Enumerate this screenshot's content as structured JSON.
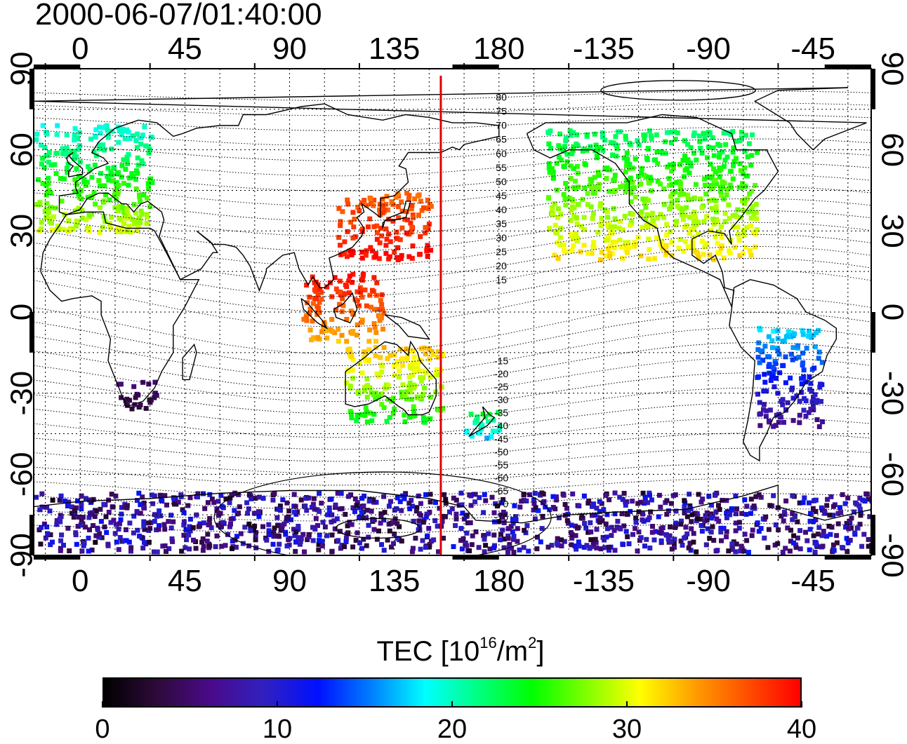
{
  "title": "2000-06-07/01:40:00",
  "map": {
    "type": "world_map_tec",
    "projection": "equirectangular",
    "lon_range": [
      -20,
      340
    ],
    "lat_range": [
      -90,
      90
    ],
    "top_axis_labels": [
      "0",
      "45",
      "90",
      "135",
      "180",
      "-135",
      "-90",
      "-45"
    ],
    "bottom_axis_labels": [
      "0",
      "45",
      "90",
      "135",
      "180",
      "-135",
      "-90",
      "-45"
    ],
    "left_axis_labels": [
      "90",
      "60",
      "30",
      "0",
      "-30",
      "-60",
      "-90"
    ],
    "right_axis_labels": [
      "90",
      "60",
      "30",
      "0",
      "-30",
      "-60",
      "-90"
    ],
    "grid": true,
    "red_meridian_lon": 155,
    "contour_labels_north": [
      "80",
      "75",
      "70",
      "65",
      "60",
      "55",
      "50",
      "45",
      "40",
      "35",
      "30",
      "25",
      "20",
      "15"
    ],
    "contour_labels_south": [
      "-15",
      "-20",
      "-25",
      "-30",
      "-35",
      "-40",
      "-45",
      "-50",
      "-55",
      "-60",
      "-65",
      "-70",
      "-75"
    ]
  },
  "colorbar": {
    "title": "TEC  [10",
    "title_sup1": "16",
    "title_mid": "/m",
    "title_sup2": "2",
    "title_end": "]",
    "min": 0,
    "max": 40,
    "tick_labels": [
      "0",
      "10",
      "20",
      "30",
      "40"
    ],
    "tick_values": [
      0,
      10,
      20,
      30,
      40
    ],
    "colors": [
      "#000000",
      "#2e0a3a",
      "#4a0a8a",
      "#3020c0",
      "#0010ff",
      "#0080ff",
      "#00ffff",
      "#00ff80",
      "#00ff00",
      "#80ff00",
      "#ffff00",
      "#ffa000",
      "#ff5000",
      "#ff0000"
    ]
  },
  "regions": [
    {
      "name": "north-america",
      "lon0": 200,
      "lon1": 290,
      "lat0": 20,
      "lat1": 68,
      "tec0": 22,
      "tec1": 32
    },
    {
      "name": "europe",
      "lon0": -20,
      "lon1": 30,
      "lat0": 30,
      "lat1": 70,
      "tec0": 19,
      "tec1": 30
    },
    {
      "name": "east-asia",
      "lon0": 110,
      "lon1": 150,
      "lat0": 20,
      "lat1": 45,
      "tec0": 36,
      "tec1": 40
    },
    {
      "name": "southeast-asia",
      "lon0": 95,
      "lon1": 130,
      "lat0": -10,
      "lat1": 15,
      "tec0": 33,
      "tec1": 40
    },
    {
      "name": "australia",
      "lon0": 113,
      "lon1": 155,
      "lat0": -40,
      "lat1": -12,
      "tec0": 24,
      "tec1": 33
    },
    {
      "name": "new-zealand",
      "lon0": 165,
      "lon1": 180,
      "lat0": -47,
      "lat1": -36,
      "tec0": 16,
      "tec1": 24
    },
    {
      "name": "south-america",
      "lon0": 290,
      "lon1": 318,
      "lat0": -42,
      "lat1": -5,
      "tec0": 6,
      "tec1": 18
    },
    {
      "name": "south-africa",
      "lon0": 15,
      "lon1": 32,
      "lat0": -36,
      "lat1": -25,
      "tec0": 3,
      "tec1": 5
    },
    {
      "name": "antarctica",
      "lon0": -20,
      "lon1": 340,
      "lat0": -88,
      "lat1": -66,
      "tec0": 2,
      "tec1": 12
    }
  ]
}
